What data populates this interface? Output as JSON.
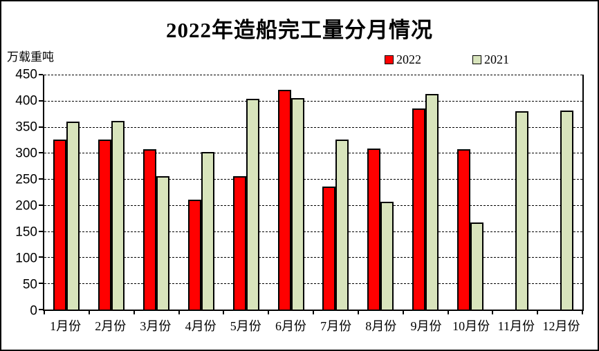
{
  "title": "2022年造船完工量分月情况",
  "y_axis_unit_label": "万载重吨",
  "legend": {
    "items": [
      {
        "label": "2022",
        "color": "#ff0000"
      },
      {
        "label": "2021",
        "color": "#d8e4bc"
      }
    ]
  },
  "chart_data": {
    "type": "bar",
    "title": "2022年造船完工量分月情况",
    "ylabel": "万载重吨",
    "categories": [
      "1月份",
      "2月份",
      "3月份",
      "4月份",
      "5月份",
      "6月份",
      "7月份",
      "8月份",
      "9月份",
      "10月份",
      "11月份",
      "12月份"
    ],
    "series": [
      {
        "name": "2022",
        "color": "#ff0000",
        "values": [
          325,
          326,
          307,
          210,
          255,
          421,
          235,
          308,
          385,
          307,
          null,
          null
        ]
      },
      {
        "name": "2021",
        "color": "#d8e4bc",
        "values": [
          360,
          361,
          255,
          302,
          404,
          405,
          326,
          207,
          413,
          167,
          380,
          381
        ]
      }
    ],
    "ylim": [
      0,
      450
    ],
    "yticks": [
      0,
      50,
      100,
      150,
      200,
      250,
      300,
      350,
      400,
      450
    ],
    "grid": true,
    "gridline_style": "dashed",
    "legend_position": "top-right",
    "bar_outline_color": "#000000",
    "background_color": "#ffffff"
  }
}
